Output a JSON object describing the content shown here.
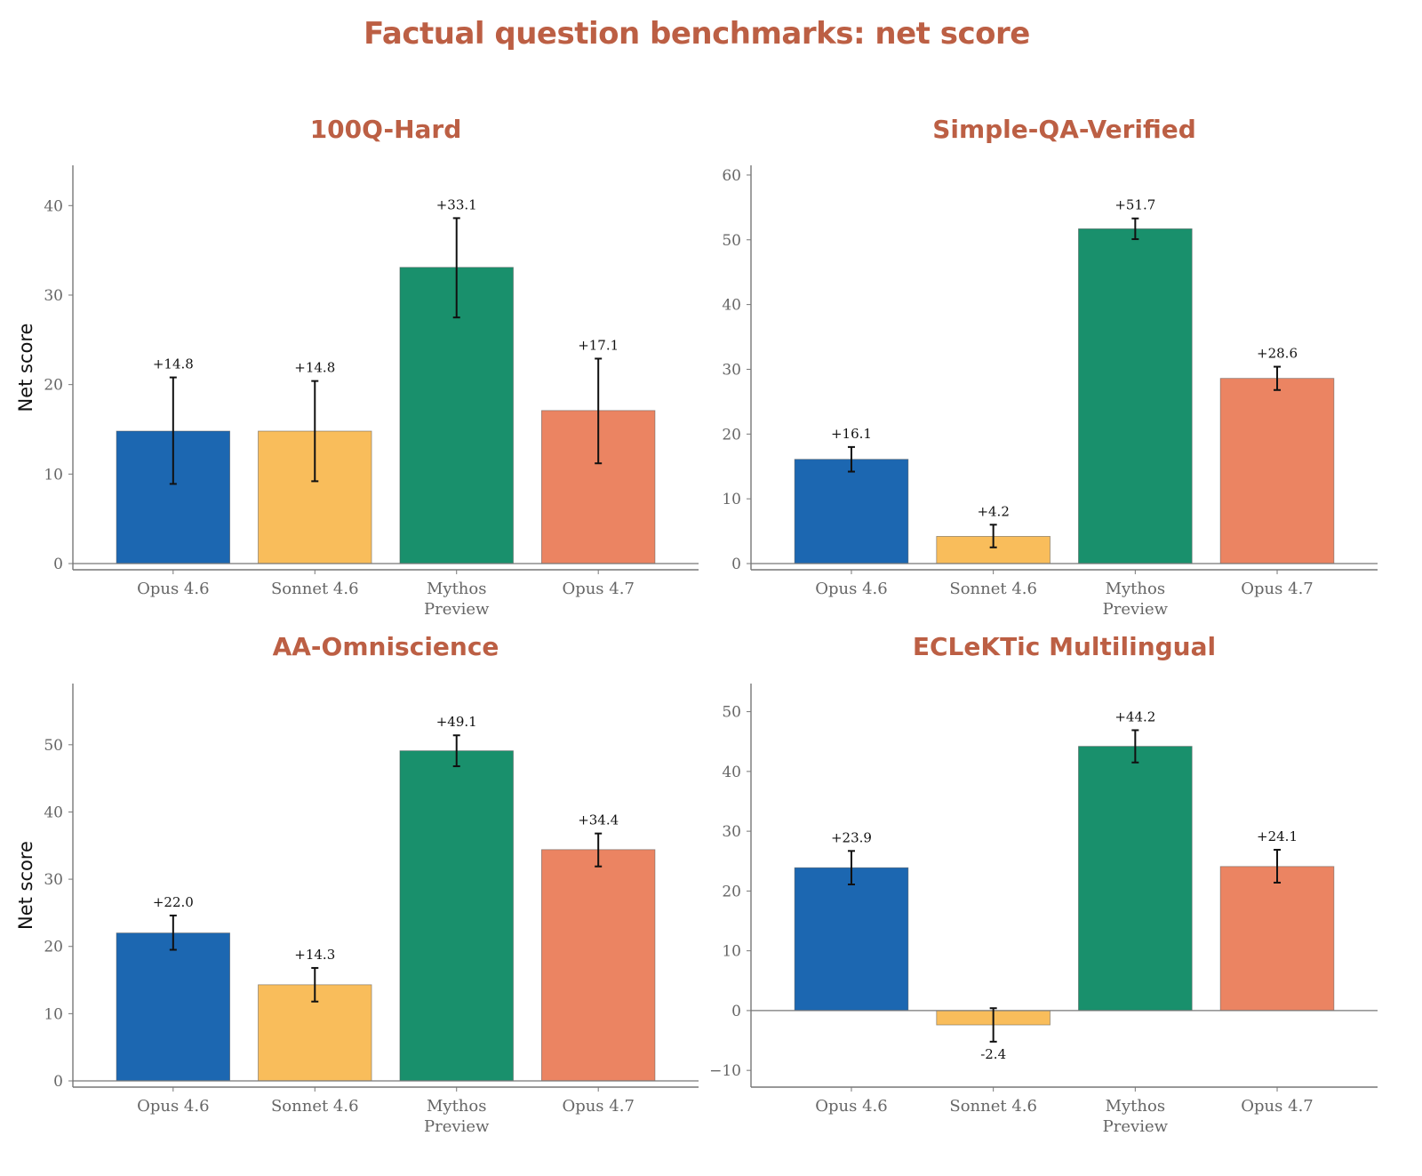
{
  "chart_data": {
    "type": "bar",
    "title": "Factual question benchmarks: net score",
    "categories": [
      "Opus 4.6",
      "Sonnet 4.6",
      "Mythos Preview",
      "Opus 4.7"
    ],
    "category_label_lines": [
      [
        "Opus 4.6"
      ],
      [
        "Sonnet 4.6"
      ],
      [
        "Mythos",
        "Preview"
      ],
      [
        "Opus 4.7"
      ]
    ],
    "colors": [
      "#1C67B1",
      "#F9BD5B",
      "#19906C",
      "#EB8462"
    ],
    "title_color": "#BC5F44",
    "legend": "none",
    "grid": false,
    "panels": [
      {
        "title": "100Q-Hard",
        "ylabel": "Net score",
        "ylim": [
          0,
          44.5
        ],
        "yticks": [
          0,
          10,
          20,
          30,
          40
        ],
        "values": [
          14.8,
          14.8,
          33.1,
          17.1
        ],
        "value_labels": [
          "+14.8",
          "+14.8",
          "+33.1",
          "+17.1"
        ],
        "error_low": [
          8.9,
          9.2,
          27.5,
          11.2
        ],
        "error_high": [
          20.8,
          20.4,
          38.6,
          22.9
        ]
      },
      {
        "title": "Simple-QA-Verified",
        "ylabel": "",
        "ylim": [
          0,
          61.5
        ],
        "yticks": [
          0,
          10,
          20,
          30,
          40,
          50,
          60
        ],
        "values": [
          16.1,
          4.2,
          51.7,
          28.6
        ],
        "value_labels": [
          "+16.1",
          "+4.2",
          "+51.7",
          "+28.6"
        ],
        "error_low": [
          14.2,
          2.5,
          50.1,
          26.8
        ],
        "error_high": [
          18.0,
          6.0,
          53.3,
          30.4
        ]
      },
      {
        "title": "AA-Omniscience",
        "ylabel": "Net score",
        "ylim": [
          0,
          59.1
        ],
        "yticks": [
          0,
          10,
          20,
          30,
          40,
          50
        ],
        "values": [
          22.0,
          14.3,
          49.1,
          34.4
        ],
        "value_labels": [
          "+22.0",
          "+14.3",
          "+49.1",
          "+34.4"
        ],
        "error_low": [
          19.5,
          11.8,
          46.8,
          31.9
        ],
        "error_high": [
          24.6,
          16.8,
          51.4,
          36.8
        ]
      },
      {
        "title": "ECLeKTic Multilingual",
        "ylabel": "",
        "ylim": [
          -12.8,
          54.7
        ],
        "yticks": [
          -10,
          0,
          10,
          20,
          30,
          40,
          50
        ],
        "values": [
          23.9,
          -2.4,
          44.2,
          24.1
        ],
        "value_labels": [
          "+23.9",
          "-2.4",
          "+44.2",
          "+24.1"
        ],
        "error_low": [
          21.1,
          -5.2,
          41.5,
          21.4
        ],
        "error_high": [
          26.7,
          0.4,
          46.9,
          26.9
        ]
      }
    ]
  }
}
